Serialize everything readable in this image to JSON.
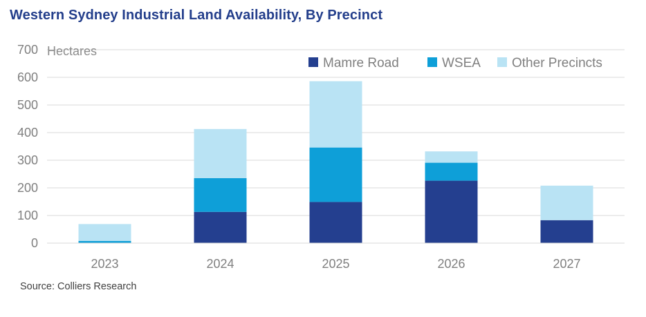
{
  "header": {
    "title": "Western Sydney Industrial Land Availability, By Precinct"
  },
  "footer": {
    "source": "Source: Colliers Research"
  },
  "chart_data": {
    "type": "bar",
    "stacked": true,
    "title": "Western Sydney Industrial Land Availability, By Precinct",
    "ylabel": "Hectares",
    "xlabel": "",
    "categories": [
      "2023",
      "2024",
      "2025",
      "2026",
      "2027"
    ],
    "ylim": [
      0,
      700
    ],
    "yticks": [
      0,
      100,
      200,
      300,
      400,
      500,
      600,
      700
    ],
    "grid": true,
    "legend_position": "top-right",
    "series": [
      {
        "name": "Mamre Road",
        "color": "#243f8f",
        "values": [
          0,
          113,
          149,
          226,
          83
        ]
      },
      {
        "name": "WSEA",
        "color": "#0e9fd8",
        "values": [
          8,
          122,
          197,
          65,
          0
        ]
      },
      {
        "name": "Other Precincts",
        "color": "#b9e3f4",
        "values": [
          61,
          178,
          240,
          41,
          125
        ]
      }
    ]
  }
}
